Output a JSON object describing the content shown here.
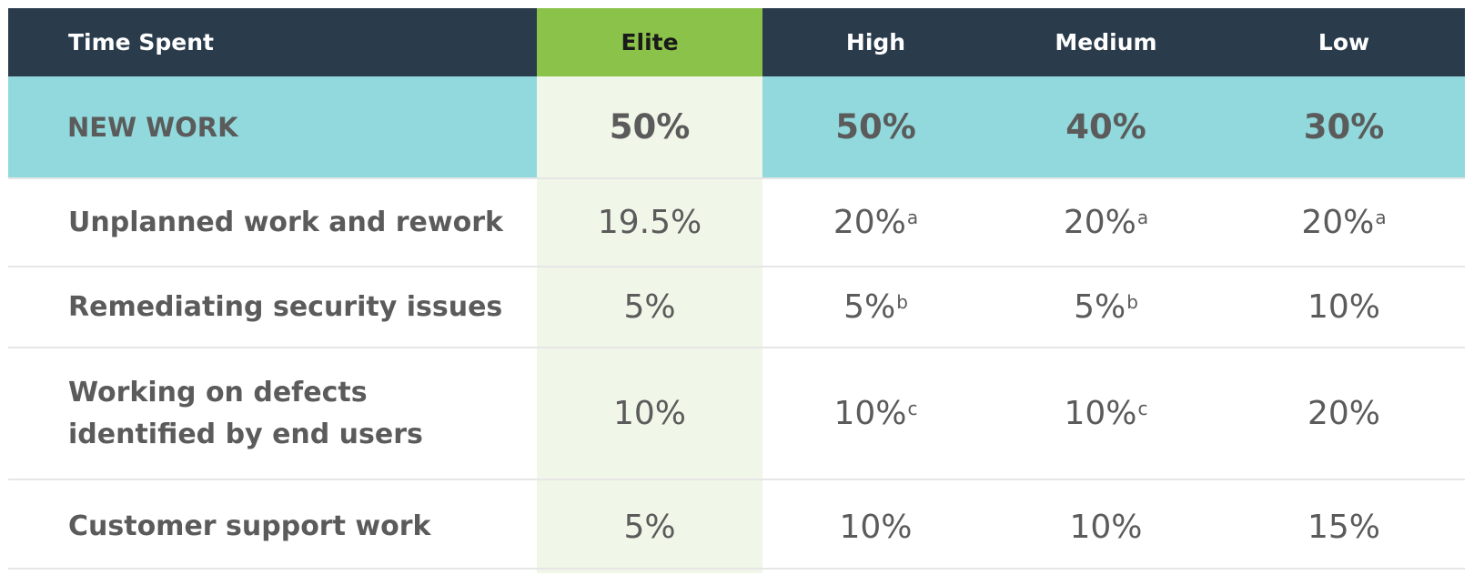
{
  "chart_data": {
    "type": "table",
    "columns": [
      "Time Spent",
      "Elite",
      "High",
      "Medium",
      "Low"
    ],
    "rows": [
      {
        "label": "NEW WORK",
        "cells": [
          {
            "v": "50%",
            "s": ""
          },
          {
            "v": "50%",
            "s": ""
          },
          {
            "v": "40%",
            "s": ""
          },
          {
            "v": "30%",
            "s": ""
          }
        ]
      },
      {
        "label": "Unplanned work and rework",
        "cells": [
          {
            "v": "19.5%",
            "s": ""
          },
          {
            "v": "20%",
            "s": "a"
          },
          {
            "v": "20%",
            "s": "a"
          },
          {
            "v": "20%",
            "s": "a"
          }
        ]
      },
      {
        "label": "Remediating security issues",
        "cells": [
          {
            "v": "5%",
            "s": ""
          },
          {
            "v": "5%",
            "s": "b"
          },
          {
            "v": "5%",
            "s": "b"
          },
          {
            "v": "10%",
            "s": ""
          }
        ]
      },
      {
        "label": "Working on defects identified by end users",
        "cells": [
          {
            "v": "10%",
            "s": ""
          },
          {
            "v": "10%",
            "s": "c"
          },
          {
            "v": "10%",
            "s": "c"
          },
          {
            "v": "20%",
            "s": ""
          }
        ]
      },
      {
        "label": "Customer support work",
        "cells": [
          {
            "v": "5%",
            "s": ""
          },
          {
            "v": "10%",
            "s": ""
          },
          {
            "v": "10%",
            "s": ""
          },
          {
            "v": "15%",
            "s": ""
          }
        ]
      }
    ],
    "colors": {
      "header_bg": "#2a3b4b",
      "elite_header": "#8bc34a",
      "highlight_row": "#91d9dc",
      "elite_column": "#f0f6e8",
      "text": "#5b5b5b"
    }
  }
}
